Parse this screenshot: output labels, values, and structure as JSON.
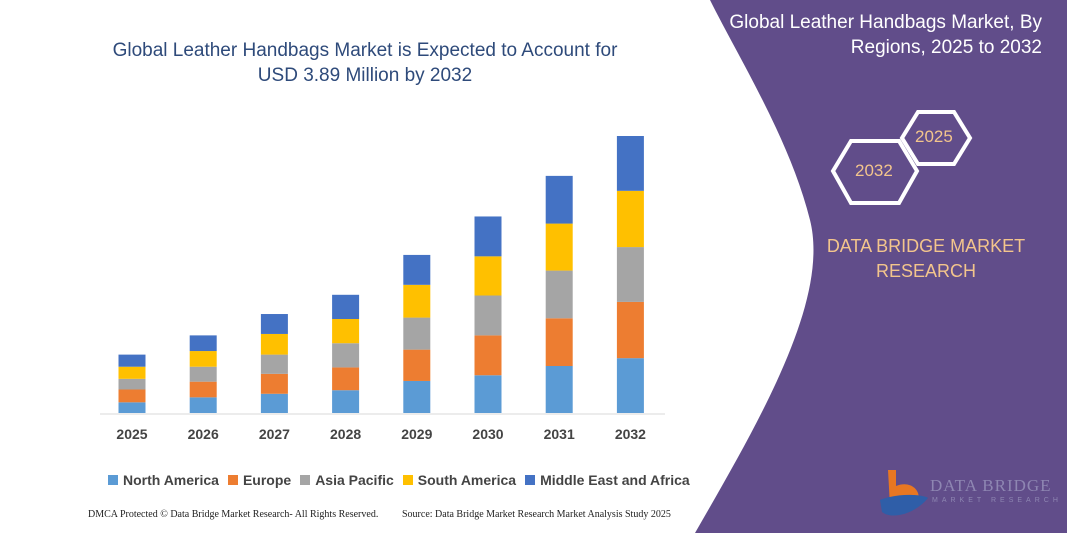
{
  "title": "Global Leather Handbags Market is Expected to Account for USD 3.89 Million by 2032",
  "title_line1": "Global Leather Handbags Market is Expected to Account for",
  "title_line2": "USD 3.89 Million by 2032",
  "side_panel": {
    "title_line1": "Global Leather Handbags Market, By",
    "title_line2": "Regions, 2025 to 2032",
    "hex_right": "2025",
    "hex_left": "2032",
    "brand_line1": "DATA BRIDGE MARKET",
    "brand_line2": "RESEARCH",
    "logo_text": "DATA BRIDGE",
    "logo_sub": "MARKET RESEARCH",
    "panel_color": "#614d8a"
  },
  "footer": {
    "left": "DMCA Protected © Data Bridge Market Research- All Rights Reserved.",
    "right": "Source: Data Bridge Market Research Market Analysis Study 2025"
  },
  "chart_data": {
    "type": "bar",
    "stacked": true,
    "categories": [
      "2025",
      "2026",
      "2027",
      "2028",
      "2029",
      "2030",
      "2031",
      "2032"
    ],
    "series": [
      {
        "name": "North America",
        "color": "#5b9bd5",
        "values": [
          0.15,
          0.22,
          0.27,
          0.32,
          0.45,
          0.53,
          0.66,
          0.77
        ]
      },
      {
        "name": "Europe",
        "color": "#ed7d31",
        "values": [
          0.18,
          0.22,
          0.28,
          0.32,
          0.44,
          0.56,
          0.67,
          0.79
        ]
      },
      {
        "name": "Asia Pacific",
        "color": "#a5a5a5",
        "values": [
          0.15,
          0.21,
          0.27,
          0.34,
          0.45,
          0.56,
          0.67,
          0.77
        ]
      },
      {
        "name": "South America",
        "color": "#ffc000",
        "values": [
          0.17,
          0.22,
          0.29,
          0.34,
          0.46,
          0.55,
          0.66,
          0.79
        ]
      },
      {
        "name": "Middle East and Africa",
        "color": "#4472c4",
        "values": [
          0.17,
          0.22,
          0.28,
          0.34,
          0.42,
          0.56,
          0.67,
          0.77
        ]
      }
    ],
    "unit": "USD Million",
    "legend": "bottom",
    "grid": false,
    "y_axis_shown": false
  }
}
